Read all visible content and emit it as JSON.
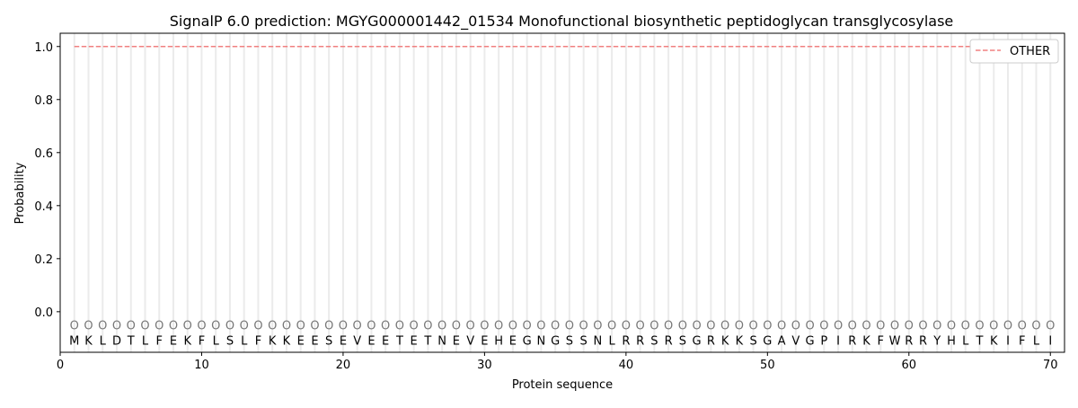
{
  "chart_data": {
    "type": "line",
    "title": "SignalP 6.0 prediction: MGYG000001442_01534 Monofunctional biosynthetic peptidoglycan transglycosylase",
    "xlabel": "Protein sequence",
    "ylabel": "Probability",
    "xlim": [
      0,
      71
    ],
    "ylim": [
      -0.153,
      1.05
    ],
    "xticks": [
      0,
      10,
      20,
      30,
      40,
      50,
      60,
      70
    ],
    "yticks": [
      "0.0",
      "0.2",
      "0.4",
      "0.6",
      "0.8",
      "1.0"
    ],
    "grid": "vertical per residue",
    "legend_position": "top-right",
    "sequence": [
      "M",
      "K",
      "L",
      "D",
      "T",
      "L",
      "F",
      "E",
      "K",
      "F",
      "L",
      "S",
      "L",
      "F",
      "K",
      "K",
      "E",
      "E",
      "S",
      "E",
      "V",
      "E",
      "E",
      "T",
      "E",
      "T",
      "N",
      "E",
      "V",
      "E",
      "H",
      "E",
      "G",
      "N",
      "G",
      "S",
      "S",
      "N",
      "L",
      "R",
      "R",
      "S",
      "R",
      "S",
      "G",
      "R",
      "K",
      "K",
      "S",
      "G",
      "A",
      "V",
      "G",
      "P",
      "I",
      "R",
      "K",
      "F",
      "W",
      "R",
      "R",
      "Y",
      "H",
      "L",
      "T",
      "K",
      "I",
      "F",
      "L",
      "I"
    ],
    "predicted_label": "O",
    "series": [
      {
        "name": "OTHER",
        "color": "#f08080",
        "style": "dashed",
        "x_range": [
          1,
          70
        ],
        "value": 1.0
      }
    ]
  }
}
